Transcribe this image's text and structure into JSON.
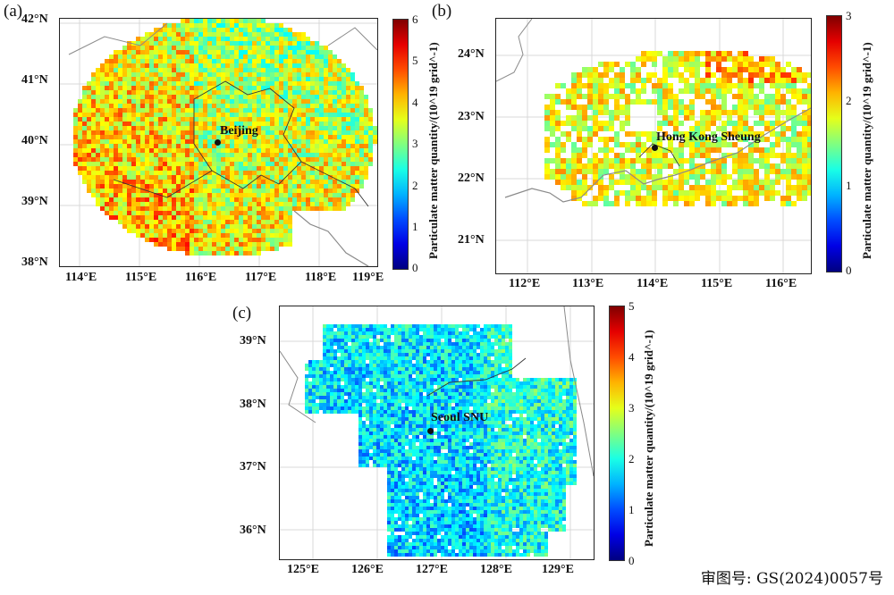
{
  "panels": [
    {
      "id": "a",
      "letter": "(a)",
      "city": "Beijing",
      "lat_ticks": [
        "42°N",
        "41°N",
        "40°N",
        "39°N",
        "38°N"
      ],
      "lon_ticks": [
        "114°E",
        "115°E",
        "116°E",
        "117°E",
        "118°E",
        "119°E"
      ],
      "colorbar": {
        "ticks": [
          "6",
          "5",
          "4",
          "3",
          "2",
          "1",
          "0"
        ],
        "max": 6,
        "label": "Particulate matter quantity/(10^19 grid^-1)"
      }
    },
    {
      "id": "b",
      "letter": "(b)",
      "city": "Hong Kong Sheung",
      "lat_ticks": [
        "24°N",
        "23°N",
        "22°N",
        "21°N"
      ],
      "lon_ticks": [
        "112°E",
        "113°E",
        "114°E",
        "115°E",
        "116°E"
      ],
      "colorbar": {
        "ticks": [
          "3",
          "2",
          "1",
          "0"
        ],
        "max": 3,
        "label": "Particulate matter quantity/(10^19 grid^-1)"
      }
    },
    {
      "id": "c",
      "letter": "(c)",
      "city": "Seoul SNU",
      "lat_ticks": [
        "39°N",
        "38°N",
        "37°N",
        "36°N"
      ],
      "lon_ticks": [
        "125°E",
        "126°E",
        "127°E",
        "128°E",
        "129°E"
      ],
      "colorbar": {
        "ticks": [
          "5",
          "4",
          "3",
          "2",
          "1",
          "0"
        ],
        "max": 5,
        "label": "Particulate matter quantity/(10^19 grid^-1)"
      }
    }
  ],
  "review_number": "审图号: GS(2024)0057号",
  "colormap_name": "jet",
  "colors": {
    "frame": "#222222",
    "coastline": "#8a8a8a",
    "boundary": "#333333",
    "grid": "#d8d8d8"
  }
}
